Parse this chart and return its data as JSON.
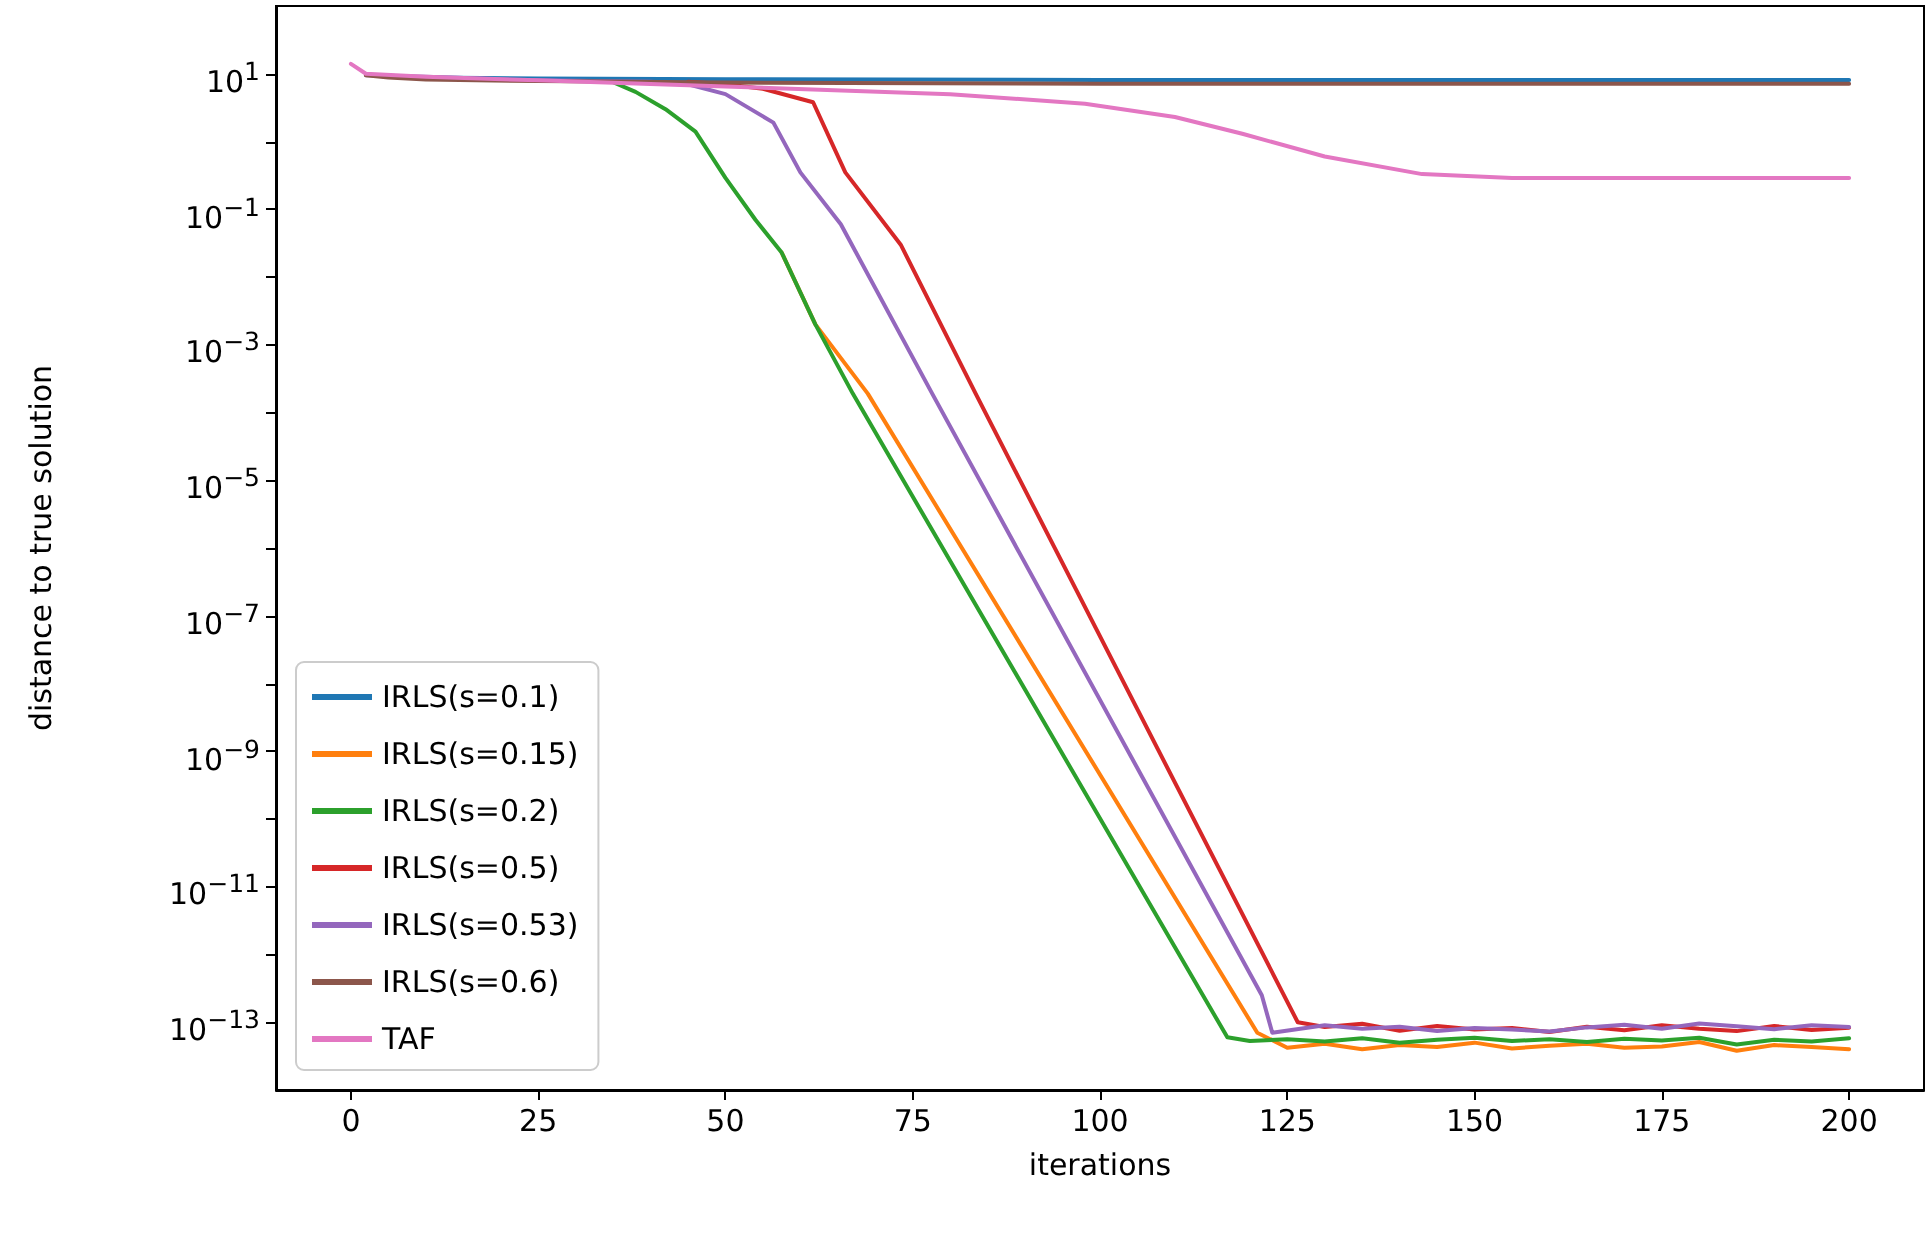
{
  "chart_data": {
    "type": "line",
    "xlabel": "iterations",
    "ylabel": "distance to true solution",
    "log": "y",
    "grid": false,
    "legend": "lower left",
    "marker": "none",
    "line_style": "solid",
    "xlim": [
      -10,
      210
    ],
    "xticks": [
      0,
      25,
      50,
      75,
      100,
      125,
      150,
      175,
      200
    ],
    "ylim": [
      1e-14,
      100
    ],
    "yticks": [
      {
        "value": 10,
        "label": "10$^{1}$"
      },
      {
        "value": 1,
        "label": null
      },
      {
        "value": 0.1,
        "label": "10$^{−1}$"
      },
      {
        "value": 0.01,
        "label": null
      },
      {
        "value": 0.001,
        "label": "10$^{−3}$"
      },
      {
        "value": 0.0001,
        "label": null
      },
      {
        "value": 1e-05,
        "label": "10$^{−5}$"
      },
      {
        "value": 1e-06,
        "label": null
      },
      {
        "value": 1e-07,
        "label": "10$^{−7}$"
      },
      {
        "value": 1e-08,
        "label": null
      },
      {
        "value": 1e-09,
        "label": "10$^{−9}$"
      },
      {
        "value": 1e-10,
        "label": null
      },
      {
        "value": 1e-11,
        "label": "10$^{−11}$"
      },
      {
        "value": 1e-12,
        "label": null
      },
      {
        "value": 1e-13,
        "label": "10$^{−13}$"
      }
    ],
    "series": [
      {
        "name": "IRLS(s=0.1)",
        "color": "#1f77b4",
        "x": [
          10,
          25,
          50,
          100,
          150,
          200
        ],
        "values": [
          8.8,
          8.5,
          8.3,
          8.1,
          8.1,
          8.1
        ]
      },
      {
        "name": "IRLS(s=0.15)",
        "color": "#ff7f0e",
        "x": [
          57.5,
          62,
          69,
          121,
          125,
          130,
          135,
          140,
          145,
          150,
          155,
          160,
          165,
          170,
          175,
          180,
          185,
          190,
          195,
          200
        ],
        "values": [
          0.023,
          0.002,
          0.00019,
          7e-14,
          4.2e-14,
          4.8e-14,
          4e-14,
          4.6e-14,
          4.3e-14,
          5e-14,
          4.1e-14,
          4.5e-14,
          4.8e-14,
          4.2e-14,
          4.4e-14,
          5.1e-14,
          3.8e-14,
          4.6e-14,
          4.3e-14,
          4e-14
        ]
      },
      {
        "name": "IRLS(s=0.2)",
        "color": "#2ca02c",
        "x": [
          35,
          38,
          42,
          46,
          50,
          54,
          57.5,
          62,
          67,
          117,
          120,
          125,
          130,
          135,
          140,
          145,
          150,
          155,
          160,
          165,
          170,
          175,
          180,
          185,
          190,
          195,
          200
        ],
        "values": [
          7.5,
          5.4,
          3,
          1.4,
          0.29,
          0.07,
          0.023,
          0.002,
          0.00019,
          6e-14,
          5.3e-14,
          5.6e-14,
          5.2e-14,
          5.8e-14,
          5e-14,
          5.5e-14,
          5.9e-14,
          5.3e-14,
          5.6e-14,
          5.1e-14,
          5.7e-14,
          5.4e-14,
          5.9e-14,
          4.7e-14,
          5.5e-14,
          5.2e-14,
          5.8e-14
        ]
      },
      {
        "name": "IRLS(s=0.5)",
        "color": "#d62728",
        "x": [
          45,
          50,
          55,
          61.7,
          66,
          73.4,
          83.4,
          126.4,
          130,
          135,
          140,
          145,
          150,
          155,
          160,
          165,
          170,
          175,
          180,
          185,
          190,
          195,
          200
        ],
        "values": [
          7.6,
          7,
          6,
          3.8,
          0.35,
          0.03,
          0.00019,
          1e-13,
          8.5e-14,
          9.5e-14,
          7.5e-14,
          8.8e-14,
          7.8e-14,
          8.2e-14,
          7.2e-14,
          8.6e-14,
          7.6e-14,
          9e-14,
          8e-14,
          7.4e-14,
          8.8e-14,
          7.7e-14,
          8.3e-14
        ]
      },
      {
        "name": "IRLS(s=0.53)",
        "color": "#9467bd",
        "x": [
          2,
          10,
          25,
          40,
          45,
          50,
          56.4,
          60,
          65.4,
          77.6,
          121.6,
          123,
          130,
          135,
          140,
          145,
          150,
          155,
          160,
          165,
          170,
          175,
          180,
          185,
          190,
          195,
          200
        ],
        "values": [
          9.5,
          9,
          8,
          7.6,
          7,
          5,
          1.9,
          0.35,
          0.06,
          0.00019,
          2.5e-13,
          7e-14,
          9e-14,
          8e-14,
          8.6e-14,
          7.4e-14,
          8.2e-14,
          7.8e-14,
          7.3e-14,
          8.4e-14,
          9.2e-14,
          8e-14,
          9.6e-14,
          8.7e-14,
          7.9e-14,
          9e-14,
          8.5e-14
        ]
      },
      {
        "name": "IRLS(s=0.6)",
        "color": "#8c564b",
        "x": [
          2,
          5,
          10,
          25,
          50,
          100,
          150,
          200
        ],
        "values": [
          9.5,
          8.8,
          8.2,
          7.8,
          7.4,
          7.1,
          7.1,
          7.1
        ]
      },
      {
        "name": "TAF",
        "color": "#e377c2",
        "x": [
          0,
          2,
          10,
          25,
          50,
          80,
          98,
          110,
          119,
          130,
          143,
          155,
          200
        ],
        "values": [
          14,
          10,
          9,
          8,
          6.5,
          5.0,
          3.6,
          2.3,
          1.3,
          0.6,
          0.33,
          0.29,
          0.29
        ]
      }
    ]
  }
}
